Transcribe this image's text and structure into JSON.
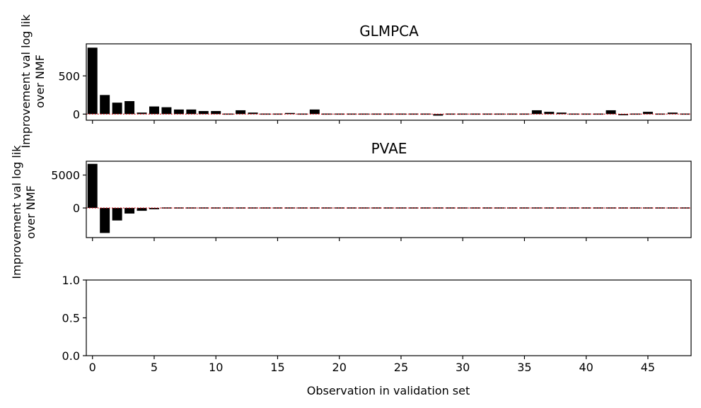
{
  "chart_data": [
    {
      "type": "bar",
      "title": "GLMPCA",
      "ylabel": [
        "Improvement val log lik",
        "over NMF"
      ],
      "xlabel": "",
      "x": [
        0,
        1,
        2,
        3,
        4,
        5,
        6,
        7,
        8,
        9,
        10,
        11,
        12,
        13,
        14,
        15,
        16,
        17,
        18,
        19,
        20,
        21,
        22,
        23,
        24,
        25,
        26,
        27,
        28,
        29,
        30,
        31,
        32,
        33,
        34,
        35,
        36,
        37,
        38,
        39,
        40,
        41,
        42,
        43,
        44,
        45,
        46,
        47,
        48
      ],
      "values": [
        870,
        250,
        150,
        170,
        20,
        100,
        90,
        60,
        60,
        40,
        40,
        5,
        50,
        20,
        5,
        5,
        15,
        5,
        60,
        5,
        5,
        5,
        5,
        5,
        10,
        5,
        10,
        5,
        -20,
        5,
        10,
        -10,
        10,
        5,
        5,
        5,
        50,
        30,
        20,
        5,
        5,
        5,
        50,
        -15,
        10,
        30,
        -5,
        20,
        -5
      ],
      "xlim": [
        -0.5,
        48.5
      ],
      "ylim": [
        -80,
        920
      ],
      "yticks": [
        0,
        500
      ],
      "xticks": [
        0,
        5,
        10,
        15,
        20,
        25,
        30,
        35,
        40,
        45
      ],
      "show_xtick_labels": false,
      "bar_color": "#000000",
      "reference_line": {
        "value": 0,
        "color": "#e8000b",
        "style": "dotted"
      }
    },
    {
      "type": "bar",
      "title": "PVAE",
      "ylabel": [
        "Improvement val log lik",
        "over NMF"
      ],
      "xlabel": "",
      "x": [
        0,
        1,
        2,
        3,
        4,
        5,
        6,
        7,
        8,
        9,
        10,
        11,
        12,
        13,
        14,
        15,
        16,
        17,
        18,
        19,
        20,
        21,
        22,
        23,
        24,
        25,
        26,
        27,
        28,
        29,
        30,
        31,
        32,
        33,
        34,
        35,
        36,
        37,
        38,
        39,
        40,
        41,
        42,
        43,
        44,
        45,
        46,
        47,
        48
      ],
      "values": [
        6700,
        -3800,
        -1900,
        -850,
        -430,
        -200,
        0,
        0,
        30,
        0,
        30,
        0,
        30,
        0,
        0,
        30,
        0,
        0,
        30,
        0,
        0,
        0,
        0,
        0,
        30,
        0,
        0,
        0,
        0,
        0,
        0,
        0,
        30,
        0,
        0,
        0,
        30,
        30,
        30,
        0,
        0,
        0,
        0,
        0,
        0,
        30,
        0,
        0,
        30
      ],
      "xlim": [
        -0.5,
        48.5
      ],
      "ylim": [
        -4500,
        7100
      ],
      "yticks": [
        0,
        5000
      ],
      "xticks": [
        0,
        5,
        10,
        15,
        20,
        25,
        30,
        35,
        40,
        45
      ],
      "show_xtick_labels": false,
      "bar_color": "#000000",
      "reference_line": {
        "value": 0,
        "color": "#e8000b",
        "style": "dotted"
      }
    },
    {
      "type": "bar",
      "title": "",
      "ylabel": [],
      "xlabel": "Observation in validation set",
      "x": [],
      "values": [],
      "xlim": [
        -0.5,
        48.5
      ],
      "ylim": [
        0,
        1
      ],
      "yticks": [
        0.0,
        0.5,
        1.0
      ],
      "ytick_labels": [
        "0.0",
        "0.5",
        "1.0"
      ],
      "xticks": [
        0,
        5,
        10,
        15,
        20,
        25,
        30,
        35,
        40,
        45
      ],
      "show_xtick_labels": true
    }
  ]
}
